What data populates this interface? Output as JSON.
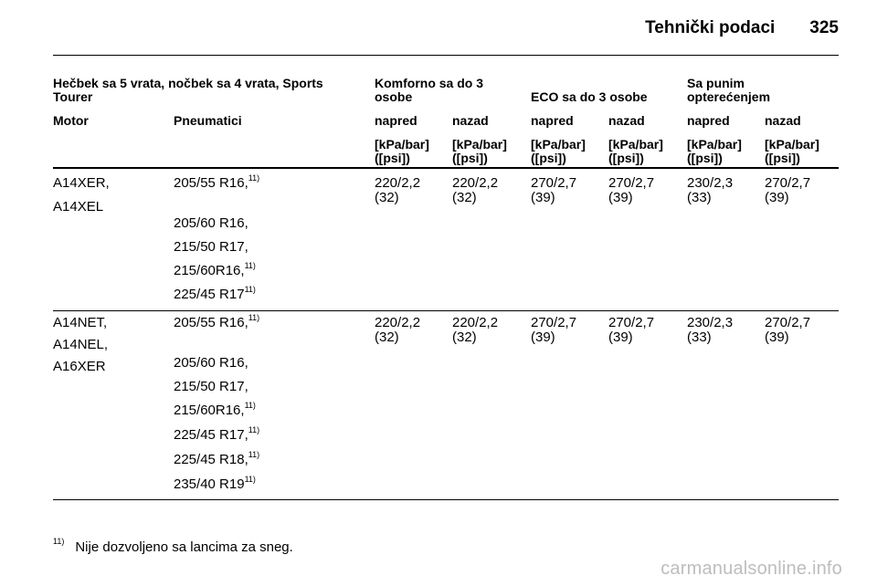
{
  "header": {
    "title": "Tehnički podaci",
    "page_number": "325"
  },
  "table": {
    "groups": {
      "vehicle": "Hečbek sa 5 vrata, nočbek sa 4 vrata, Sports Tourer",
      "comfort": "Komforno sa do 3 osobe",
      "eco": "ECO sa do 3 osobe",
      "full": "Sa punim opterećenjem"
    },
    "columns": {
      "motor": "Motor",
      "tires": "Pneumatici",
      "front": "napred",
      "rear": "nazad",
      "unit_line1": "[kPa/bar]",
      "unit_line2": "([psi])"
    },
    "rows": [
      {
        "engines": [
          "A14XER,",
          "A14XEL"
        ],
        "tires": [
          {
            "text": "205/55 R16,",
            "note": "11)"
          },
          {
            "text": "205/60 R16,",
            "note": ""
          },
          {
            "text": "215/50 R17,",
            "note": ""
          },
          {
            "text": "215/60R16,",
            "note": "11)"
          },
          {
            "text": "225/45 R17",
            "note": "11)"
          }
        ],
        "pressures": [
          [
            "220/2,2",
            "(32)"
          ],
          [
            "220/2,2",
            "(32)"
          ],
          [
            "270/2,7",
            "(39)"
          ],
          [
            "270/2,7",
            "(39)"
          ],
          [
            "230/2,3",
            "(33)"
          ],
          [
            "270/2,7",
            "(39)"
          ]
        ]
      },
      {
        "engines": [
          "A14NET,",
          "A14NEL,",
          "A16XER"
        ],
        "tires": [
          {
            "text": "205/55 R16,",
            "note": "11)"
          },
          {
            "text": "205/60 R16,",
            "note": ""
          },
          {
            "text": "215/50 R17,",
            "note": ""
          },
          {
            "text": "215/60R16,",
            "note": "11)"
          },
          {
            "text": "225/45 R17,",
            "note": "11)"
          },
          {
            "text": "225/45 R18,",
            "note": "11)"
          },
          {
            "text": "235/40 R19",
            "note": "11)"
          }
        ],
        "pressures": [
          [
            "220/2,2",
            "(32)"
          ],
          [
            "220/2,2",
            "(32)"
          ],
          [
            "270/2,7",
            "(39)"
          ],
          [
            "270/2,7",
            "(39)"
          ],
          [
            "230/2,3",
            "(33)"
          ],
          [
            "270/2,7",
            "(39)"
          ]
        ]
      }
    ]
  },
  "footnote": {
    "marker": "11)",
    "text": "Nije dozvoljeno sa lancima za sneg."
  },
  "watermark": "carmanualsonline.info"
}
